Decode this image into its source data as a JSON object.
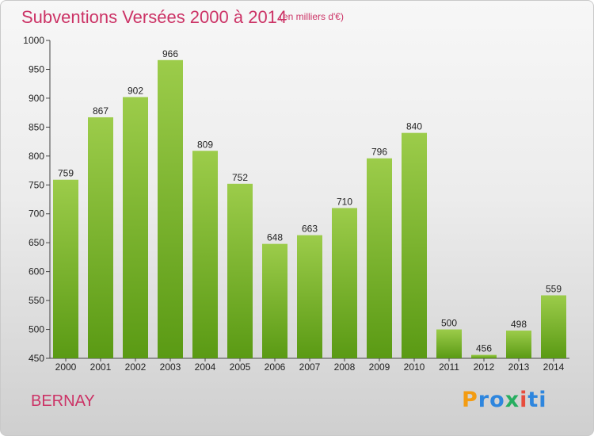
{
  "header": {
    "title": "Subventions Versées 2000 à 2014",
    "unit_note": "(en milliers d'€)"
  },
  "footer": {
    "city": "BERNAY",
    "logo_text": "Proxiti"
  },
  "colors": {
    "title": "#cc3366",
    "bar_top": "#9ccc4a",
    "bar_bottom": "#5a9a14",
    "logo_letters": [
      "#f39c12",
      "#2e86de",
      "#2e86de",
      "#27ae60",
      "#e74c3c",
      "#2e86de",
      "#2e86de"
    ]
  },
  "chart_data": {
    "type": "bar",
    "title": "Subventions Versées 2000 à 2014",
    "subtitle": "(en milliers d'€)",
    "xlabel": "",
    "ylabel": "",
    "categories": [
      "2000",
      "2001",
      "2002",
      "2003",
      "2004",
      "2005",
      "2006",
      "2007",
      "2008",
      "2009",
      "2010",
      "2011",
      "2012",
      "2013",
      "2014"
    ],
    "values": [
      759,
      867,
      902,
      966,
      809,
      752,
      648,
      663,
      710,
      796,
      840,
      500,
      456,
      498,
      559
    ],
    "ylim": [
      450,
      1000
    ],
    "yticks": [
      450,
      500,
      550,
      600,
      650,
      700,
      750,
      800,
      850,
      900,
      950,
      1000
    ],
    "grid": false,
    "legend": "none"
  }
}
